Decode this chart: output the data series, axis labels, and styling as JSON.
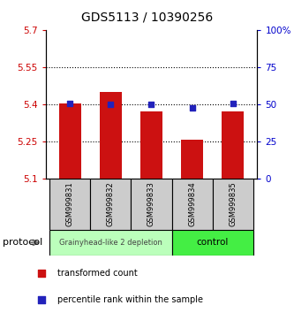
{
  "title": "GDS5113 / 10390256",
  "samples": [
    "GSM999831",
    "GSM999832",
    "GSM999833",
    "GSM999834",
    "GSM999835"
  ],
  "bar_values": [
    5.402,
    5.448,
    5.371,
    5.258,
    5.37
  ],
  "percentile_values": [
    50.5,
    50.0,
    50.0,
    47.5,
    50.5
  ],
  "ylim_left": [
    5.1,
    5.7
  ],
  "ylim_right": [
    0,
    100
  ],
  "yticks_left": [
    5.1,
    5.25,
    5.4,
    5.55,
    5.7
  ],
  "yticks_right": [
    0,
    25,
    50,
    75,
    100
  ],
  "ytick_labels_left": [
    "5.1",
    "5.25",
    "5.4",
    "5.55",
    "5.7"
  ],
  "ytick_labels_right": [
    "0",
    "25",
    "50",
    "75",
    "100%"
  ],
  "bar_color": "#cc1111",
  "marker_color": "#2222bb",
  "bar_bottom": 5.1,
  "group1_label": "Grainyhead-like 2 depletion",
  "group2_label": "control",
  "group1_color": "#bbffbb",
  "group2_color": "#44ee44",
  "group1_indices": [
    0,
    1,
    2
  ],
  "group2_indices": [
    3,
    4
  ],
  "protocol_label": "protocol",
  "legend_bar_label": "transformed count",
  "legend_marker_label": "percentile rank within the sample",
  "background_color": "#ffffff",
  "sample_box_color": "#cccccc"
}
